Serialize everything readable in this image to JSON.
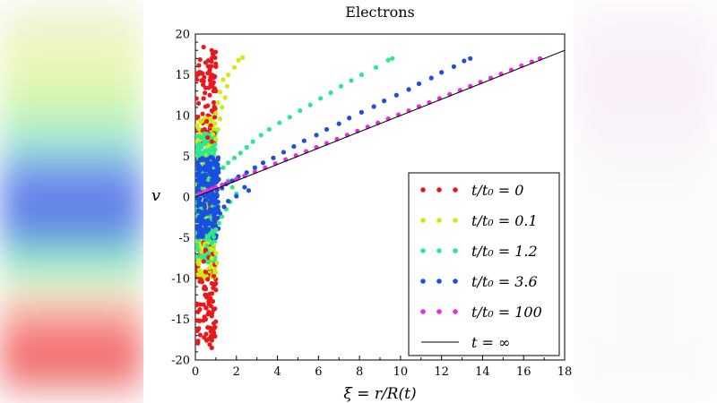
{
  "chart_data": {
    "type": "scatter",
    "title": "Electrons",
    "xlabel": "ξ = r/R(t)",
    "ylabel": "v",
    "xlim": [
      0,
      18
    ],
    "ylim": [
      -20,
      20
    ],
    "xticks": [
      "0",
      "2",
      "4",
      "6",
      "8",
      "10",
      "12",
      "14",
      "16",
      "18"
    ],
    "yticks": [
      "-20",
      "-15",
      "-10",
      "-5",
      "0",
      "5",
      "10",
      "15",
      "20"
    ],
    "legend_position": "lower-right",
    "series": [
      {
        "name": "t/t₀ = 0",
        "color": "#e8191c",
        "points": [
          [
            0.4,
            18.4
          ],
          [
            0.8,
            18
          ],
          [
            0.9,
            17.2
          ],
          [
            0.5,
            16.5
          ],
          [
            1.0,
            16
          ],
          [
            0.7,
            15.6
          ],
          [
            0.6,
            15.2
          ],
          [
            0.95,
            14.8
          ],
          [
            0.3,
            14.3
          ],
          [
            0.85,
            13.9
          ],
          [
            0.5,
            13.4
          ],
          [
            1.0,
            13
          ],
          [
            0.7,
            12.5
          ],
          [
            0.4,
            12.1
          ],
          [
            0.9,
            11.6
          ],
          [
            0.6,
            11.2
          ],
          [
            0.8,
            10.6
          ],
          [
            0.35,
            10.2
          ],
          [
            0.95,
            9.8
          ],
          [
            0.55,
            9.3
          ],
          [
            0.75,
            8.8
          ],
          [
            0.45,
            8.3
          ],
          [
            0.9,
            7.8
          ],
          [
            0.6,
            7.3
          ],
          [
            0.8,
            6.8
          ],
          [
            0.5,
            -6.5
          ],
          [
            0.85,
            -7
          ],
          [
            0.65,
            -7.4
          ],
          [
            0.4,
            -7.9
          ],
          [
            0.95,
            -8.3
          ],
          [
            0.7,
            -8.8
          ],
          [
            0.5,
            -9.2
          ],
          [
            0.9,
            -9.7
          ],
          [
            0.6,
            -10.1
          ],
          [
            0.8,
            -10.6
          ],
          [
            0.45,
            -11
          ],
          [
            1.0,
            -11.4
          ],
          [
            0.7,
            -11.9
          ],
          [
            0.55,
            -12.3
          ],
          [
            0.85,
            -12.8
          ],
          [
            0.4,
            -13.2
          ],
          [
            0.95,
            -13.7
          ],
          [
            0.65,
            -14.1
          ],
          [
            0.8,
            -14.6
          ],
          [
            0.5,
            -15
          ],
          [
            0.9,
            -15.5
          ],
          [
            0.6,
            -16
          ],
          [
            0.75,
            -16.5
          ],
          [
            0.85,
            -17.1
          ],
          [
            0.55,
            -17.6
          ],
          [
            0.7,
            -18.1
          ],
          [
            0.8,
            -18.5
          ]
        ]
      },
      {
        "name": "t/t₀ = 0.1",
        "color": "#cdeb0e",
        "points": [
          [
            2.3,
            17.1
          ],
          [
            2.1,
            16.8
          ],
          [
            1.9,
            15.9
          ],
          [
            1.6,
            15
          ],
          [
            1.35,
            14.4
          ],
          [
            1.55,
            13.6
          ],
          [
            1.2,
            12.9
          ],
          [
            1.45,
            12.2
          ],
          [
            1.1,
            11.6
          ],
          [
            1.3,
            11
          ],
          [
            1.0,
            10.3
          ],
          [
            1.2,
            9.6
          ],
          [
            0.95,
            9
          ],
          [
            1.1,
            8.3
          ],
          [
            0.85,
            7.7
          ],
          [
            1.0,
            7.1
          ],
          [
            0.9,
            -5.8
          ],
          [
            0.75,
            -6.4
          ],
          [
            1.0,
            -6.9
          ],
          [
            0.8,
            -7.5
          ],
          [
            1.05,
            -8.1
          ],
          [
            0.7,
            -8.7
          ],
          [
            0.95,
            -9.2
          ]
        ]
      },
      {
        "name": "t/t₀ = 1.2",
        "color": "#2de88c",
        "points": [
          [
            9.6,
            17
          ],
          [
            9.4,
            16.8
          ],
          [
            8.8,
            15.9
          ],
          [
            8.1,
            15
          ],
          [
            7.6,
            14.3
          ],
          [
            7.1,
            13.6
          ],
          [
            6.6,
            12.8
          ],
          [
            6.1,
            12.1
          ],
          [
            5.6,
            11.3
          ],
          [
            5.1,
            10.6
          ],
          [
            4.6,
            9.8
          ],
          [
            4.1,
            9.1
          ],
          [
            3.6,
            8.3
          ],
          [
            3.2,
            7.6
          ],
          [
            2.8,
            6.8
          ],
          [
            2.5,
            6.1
          ],
          [
            2.2,
            5.4
          ],
          [
            1.9,
            4.8
          ],
          [
            1.6,
            4.2
          ],
          [
            1.35,
            3.6
          ],
          [
            1.6,
            2
          ],
          [
            1.8,
            1.2
          ],
          [
            2.0,
            0.4
          ],
          [
            1.7,
            -0.6
          ],
          [
            1.5,
            -1.5
          ],
          [
            1.3,
            -2.4
          ],
          [
            1.15,
            -3.2
          ],
          [
            1.0,
            -4
          ],
          [
            0.9,
            -4.9
          ],
          [
            0.8,
            -5.6
          ]
        ]
      },
      {
        "name": "t/t₀ = 3.6",
        "color": "#1b4fe0",
        "points": [
          [
            13.4,
            17
          ],
          [
            13.1,
            16.7
          ],
          [
            12.6,
            16
          ],
          [
            12.0,
            15.3
          ],
          [
            11.5,
            14.6
          ],
          [
            10.9,
            13.9
          ],
          [
            10.4,
            13.2
          ],
          [
            9.8,
            12.5
          ],
          [
            9.2,
            11.8
          ],
          [
            8.7,
            11.1
          ],
          [
            8.1,
            10.4
          ],
          [
            7.5,
            9.7
          ],
          [
            7.0,
            9
          ],
          [
            6.4,
            8.3
          ],
          [
            5.9,
            7.6
          ],
          [
            5.3,
            6.9
          ],
          [
            4.8,
            6.2
          ],
          [
            4.3,
            5.5
          ],
          [
            3.8,
            4.8
          ],
          [
            3.3,
            4.2
          ],
          [
            2.9,
            3.6
          ],
          [
            2.5,
            3
          ],
          [
            2.1,
            2.5
          ],
          [
            1.8,
            2
          ],
          [
            1.5,
            1.6
          ],
          [
            1.3,
            1.1
          ],
          [
            2.4,
            1.2
          ],
          [
            2.6,
            0.8
          ],
          [
            2.0,
            0.1
          ],
          [
            1.6,
            -0.5
          ],
          [
            1.4,
            -1.2
          ],
          [
            1.2,
            -2
          ]
        ]
      },
      {
        "name": "t/t₀ = 100",
        "color": "#e52ee5",
        "points": [
          [
            16.8,
            17
          ],
          [
            16.4,
            16.6
          ],
          [
            15.9,
            16.1
          ],
          [
            15.4,
            15.6
          ],
          [
            14.9,
            15.1
          ],
          [
            14.4,
            14.6
          ],
          [
            13.9,
            14.1
          ],
          [
            13.4,
            13.6
          ],
          [
            12.9,
            13.1
          ],
          [
            12.4,
            12.6
          ],
          [
            11.9,
            12.1
          ],
          [
            11.4,
            11.6
          ],
          [
            10.9,
            11.1
          ],
          [
            10.4,
            10.6
          ],
          [
            9.9,
            10.1
          ],
          [
            9.4,
            9.6
          ],
          [
            8.9,
            9.1
          ],
          [
            8.4,
            8.6
          ],
          [
            7.9,
            8.1
          ],
          [
            7.4,
            7.6
          ],
          [
            6.9,
            7.1
          ],
          [
            6.4,
            6.6
          ],
          [
            5.9,
            6.1
          ],
          [
            5.4,
            5.6
          ],
          [
            4.9,
            5.1
          ],
          [
            4.4,
            4.6
          ],
          [
            3.9,
            4.1
          ],
          [
            3.4,
            3.6
          ],
          [
            2.9,
            3.1
          ],
          [
            2.4,
            2.6
          ],
          [
            2.0,
            2.2
          ],
          [
            1.6,
            1.8
          ],
          [
            1.3,
            1.5
          ],
          [
            1.0,
            1.2
          ],
          [
            0.8,
            1
          ],
          [
            0.6,
            0.8
          ],
          [
            0.4,
            0.6
          ],
          [
            0.2,
            0.4
          ]
        ]
      },
      {
        "name": "t = ∞",
        "color": "#000000",
        "line": [
          [
            0,
            0
          ],
          [
            18,
            18
          ]
        ]
      }
    ]
  }
}
